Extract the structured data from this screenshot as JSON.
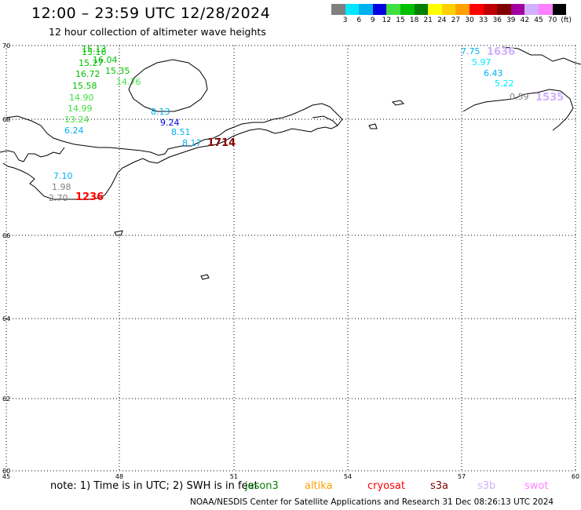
{
  "header": {
    "title": "12:00 – 23:59 UTC 12/28/2024",
    "subtitle": "12 hour collection of altimeter wave heights"
  },
  "legend": {
    "colors": [
      "#808080",
      "#00e8ff",
      "#00b0f0",
      "#0000e0",
      "#40e040",
      "#00c000",
      "#008000",
      "#ffff00",
      "#ffd000",
      "#ffa000",
      "#ff0000",
      "#c00000",
      "#800000",
      "#a000a0",
      "#d0b0ff",
      "#ff80ff",
      "#000000"
    ],
    "tick_labels": [
      "3",
      "6",
      "9",
      "12",
      "15",
      "18",
      "21",
      "24",
      "27",
      "30",
      "33",
      "36",
      "39",
      "42",
      "45",
      "70",
      "(ft)"
    ]
  },
  "map": {
    "lat_labels": [
      "70",
      "68",
      "66",
      "64",
      "62",
      "60"
    ],
    "lon_labels": [
      "45",
      "48",
      "51",
      "54",
      "57",
      "60"
    ],
    "wave_heights": [
      {
        "value": "15.13",
        "color": "#00c000"
      },
      {
        "value": "15.16",
        "color": "#00c000"
      },
      {
        "value": "16.04",
        "color": "#00c000"
      },
      {
        "value": "15.27",
        "color": "#00c000"
      },
      {
        "value": "15.35",
        "color": "#00c000"
      },
      {
        "value": "16.72",
        "color": "#00c000"
      },
      {
        "value": "14.76",
        "color": "#40e040"
      },
      {
        "value": "15.58",
        "color": "#00c000"
      },
      {
        "value": "14.90",
        "color": "#40e040"
      },
      {
        "value": "14.99",
        "color": "#40e040"
      },
      {
        "value": "13.24",
        "color": "#40e040"
      },
      {
        "value": "6.24",
        "color": "#00b0f0"
      },
      {
        "value": "8.13",
        "color": "#00b0f0"
      },
      {
        "value": "9.24",
        "color": "#0000e0"
      },
      {
        "value": "8.51",
        "color": "#00b0f0"
      },
      {
        "value": "8.17",
        "color": "#00b0f0"
      },
      {
        "value": "7.10",
        "color": "#00b0f0"
      },
      {
        "value": "1.98",
        "color": "#808080"
      },
      {
        "value": "2.70",
        "color": "#808080"
      },
      {
        "value": "7.75",
        "color": "#00b0f0"
      },
      {
        "value": "5.97",
        "color": "#00e8ff"
      },
      {
        "value": "6.43",
        "color": "#00b0f0"
      },
      {
        "value": "5.22",
        "color": "#00e8ff"
      },
      {
        "value": "0.59",
        "color": "#808080"
      }
    ],
    "pass_times": [
      {
        "value": "1714",
        "color": "#800000"
      },
      {
        "value": "1236",
        "color": "#ff0000"
      },
      {
        "value": "1636",
        "color": "#d0b0ff"
      },
      {
        "value": "1535",
        "color": "#d0b0ff"
      }
    ]
  },
  "footer": {
    "note": "note:  1) Time is in UTC; 2) SWH is in feet",
    "satellites": [
      {
        "name": "jason3",
        "color": "#008000"
      },
      {
        "name": "altika",
        "color": "#ffa000"
      },
      {
        "name": "cryosat",
        "color": "#ff0000"
      },
      {
        "name": "s3a",
        "color": "#800000"
      },
      {
        "name": "s3b",
        "color": "#d0b0ff"
      },
      {
        "name": "swot",
        "color": "#ff80ff"
      }
    ],
    "credit": "NOAA/NESDIS Center for Satellite Applications and Research     31 Dec 08:26:13 UTC 2024"
  }
}
